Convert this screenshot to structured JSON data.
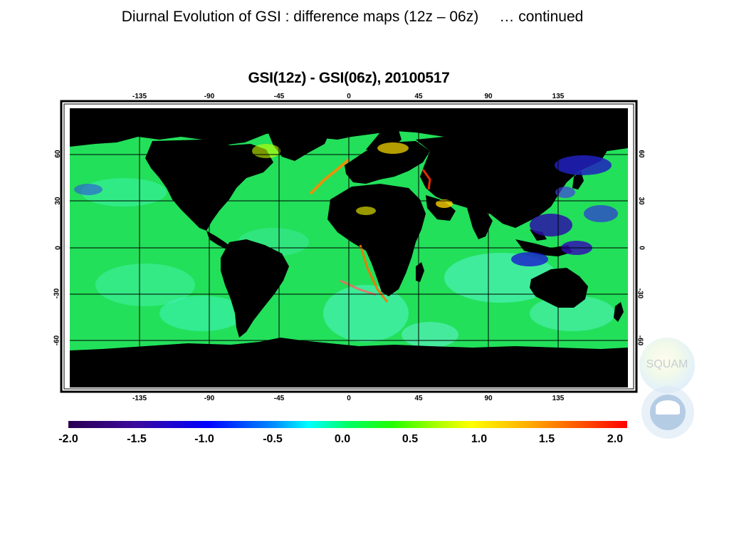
{
  "slide": {
    "title": "Diurnal Evolution of GSI : difference maps (12z – 06z)     … continued"
  },
  "map": {
    "title": "GSI(12z) - GSI(06z), 20100517",
    "lon_ticks": [
      "-135",
      "-90",
      "-45",
      "0",
      "45",
      "90",
      "135"
    ],
    "lon_values": [
      -135,
      -90,
      -45,
      0,
      45,
      90,
      135
    ],
    "lat_ticks": [
      "60",
      "30",
      "0",
      "-30",
      "-60"
    ],
    "lat_values": [
      60,
      30,
      0,
      -30,
      -60
    ],
    "extent": {
      "lon": [
        -180,
        180
      ],
      "lat": [
        -90,
        90
      ]
    },
    "land_color": "#000000",
    "ocean_color": "#22e05a",
    "grid": true
  },
  "colorbar": {
    "labels": [
      "-2.0",
      "-1.5",
      "-1.0",
      "-0.5",
      "0.0",
      "0.5",
      "1.0",
      "1.5",
      "2.0"
    ],
    "range": [
      -2.0,
      2.0
    ],
    "low_color": "#2a0050",
    "mid_color": "#00ff66",
    "high_color": "#ff0000"
  },
  "logos": {
    "squam": "SQUAM",
    "noaa": "NOAA"
  }
}
